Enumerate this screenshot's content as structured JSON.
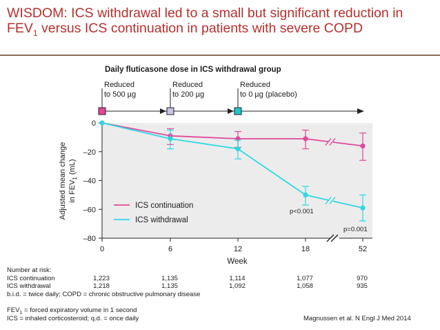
{
  "slide": {
    "title_pre": "WISDOM: ICS withdrawal led to a small but significant reduction in FEV",
    "title_sub": "1",
    "title_post": " versus ICS continuation in patients with severe COPD",
    "subtitle": "Daily fluticasone dose in ICS withdrawal group",
    "steps": [
      {
        "line1": "Reduced",
        "line2": "to 500 µg",
        "marker_color": "#e2479a",
        "at_week": 0
      },
      {
        "line1": "Reduced",
        "line2": "to 200 µg",
        "marker_color": "#cbc3e3",
        "at_week": 6
      },
      {
        "line1": "Reduced",
        "line2": "to 0 µg (placebo)",
        "marker_color": "#1fc8cf",
        "at_week": 12
      }
    ],
    "risk": {
      "header": "Number at risk:",
      "rows": [
        {
          "label": "ICS continuation",
          "values": [
            "1,223",
            "1,135",
            "1,114",
            "1,077",
            "970"
          ]
        },
        {
          "label": "ICS withdrawal",
          "values": [
            "1,218",
            "1,135",
            "1,092",
            "1,058",
            "935"
          ]
        }
      ]
    },
    "footnotes": {
      "abbrev1": "b.i.d. = twice daily; COPD = chronic obstructive pulmonary disease",
      "fev_pre": "FEV",
      "fev_sub": "1",
      "fev_post": " = forced expiratory volume in 1 second",
      "ics": "ICS = inhaled corticosteroid; q.d. = once daily"
    },
    "citation": "Magnussen et al. N Engl J Med 2014"
  },
  "chart_data": {
    "type": "line",
    "x": [
      0,
      6,
      12,
      18,
      52
    ],
    "x_tick_labels": [
      "0",
      "6",
      "12",
      "18",
      "52"
    ],
    "xlabel": "Week",
    "ylabel_line1": "Adjusted mean change",
    "ylabel_line2_pre": "in FEV",
    "ylabel_line2_sub": "1",
    "ylabel_line2_post": " (mL)",
    "ylim": [
      -80,
      0
    ],
    "y_ticks": [
      0,
      -20,
      -40,
      -60,
      -80
    ],
    "y_tick_labels": [
      "0",
      "–20",
      "–40",
      "–60",
      "–80"
    ],
    "axis_break": "between 18 and 52",
    "legend_position": "lower-left",
    "series": [
      {
        "name": "ICS continuation",
        "color": "#e2479a",
        "values": [
          0,
          -9,
          -11,
          -11,
          -16
        ],
        "err_low": [
          0,
          -15,
          -17,
          -18,
          -26
        ],
        "err_high": [
          0,
          -4,
          -6,
          -5,
          -7
        ]
      },
      {
        "name": "ICS withdrawal",
        "color": "#2bd9e3",
        "values": [
          0,
          -11,
          -18,
          -50,
          -59
        ],
        "err_low": [
          0,
          -18,
          -25,
          -57,
          -68
        ],
        "err_high": [
          0,
          -5,
          -12,
          -44,
          -50
        ]
      }
    ],
    "annotations": [
      {
        "text": "p<0.001",
        "at_x": 18
      },
      {
        "text": "p=0.001",
        "at_x": 52
      }
    ]
  }
}
